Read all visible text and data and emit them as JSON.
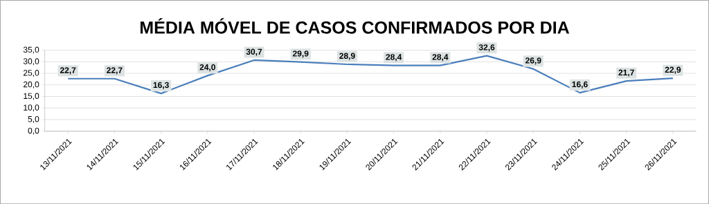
{
  "chart_data": {
    "type": "line",
    "title": "MÉDIA MÓVEL DE CASOS CONFIRMADOS POR DIA",
    "categories": [
      "13/11/2021",
      "14/11/2021",
      "15/11/2021",
      "16/11/2021",
      "17/11/2021",
      "18/11/2021",
      "19/11/2021",
      "20/11/2021",
      "21/11/2021",
      "22/11/2021",
      "23/11/2021",
      "24/11/2021",
      "25/11/2021",
      "26/11/2021"
    ],
    "series": [
      {
        "color": "#4a7ebb",
        "values": [
          22.7,
          22.7,
          16.3,
          24.0,
          30.7,
          29.9,
          28.9,
          28.4,
          28.4,
          32.6,
          26.9,
          16.6,
          21.7,
          22.9
        ],
        "value_labels": [
          "22,7",
          "22,7",
          "16,3",
          "24,0",
          "30,7",
          "29,9",
          "28,9",
          "28,4",
          "28,4",
          "32,6",
          "26,9",
          "16,6",
          "21,7",
          "22,9"
        ]
      }
    ],
    "ylim": [
      0,
      35
    ],
    "yticks": [
      {
        "value": 0,
        "label": "0,0"
      },
      {
        "value": 5,
        "label": "5,0"
      },
      {
        "value": 10,
        "label": "10,0"
      },
      {
        "value": 15,
        "label": "15,0"
      },
      {
        "value": 20,
        "label": "20,0"
      },
      {
        "value": 25,
        "label": "25,0"
      },
      {
        "value": 30,
        "label": "30,0"
      },
      {
        "value": 35,
        "label": "35,0"
      }
    ],
    "grid": "y",
    "line_style": "solid"
  }
}
